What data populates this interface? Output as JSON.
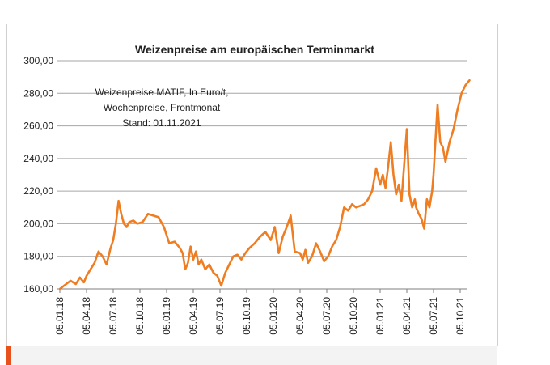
{
  "chart_data": {
    "type": "line",
    "title": "Weizenpreise am europäischen Terminmarkt",
    "annotation_lines": [
      "Weizenpreise MATIF, In Euro/t,",
      "Wochenpreise, Frontmonat",
      "Stand: 01.11.2021"
    ],
    "xlabel": "",
    "ylabel": "",
    "ylim": [
      160,
      300
    ],
    "y_ticks": [
      160,
      180,
      200,
      220,
      240,
      260,
      280,
      300
    ],
    "y_tick_labels": [
      "160,00",
      "180,00",
      "200,00",
      "220,00",
      "240,00",
      "260,00",
      "280,00",
      "300,00"
    ],
    "x_tick_labels": [
      "05.01.18",
      "05.04.18",
      "05.07.18",
      "05.10.18",
      "05.01.19",
      "05.04.19",
      "05.07.19",
      "05.10.19",
      "05.01.20",
      "05.04.20",
      "05.07.20",
      "05.10.20",
      "05.01.21",
      "05.04.21",
      "05.07.21",
      "05.10.21"
    ],
    "grid": true,
    "line_color": "#ef7d22",
    "series": [
      {
        "name": "Weizenpreise MATIF",
        "x": [
          0,
          0.4,
          0.6,
          0.75,
          0.9,
          1.0,
          1.15,
          1.3,
          1.45,
          1.6,
          1.75,
          1.9,
          2.0,
          2.1,
          2.2,
          2.3,
          2.4,
          2.5,
          2.6,
          2.75,
          2.9,
          3.1,
          3.3,
          3.5,
          3.7,
          3.9,
          4.1,
          4.3,
          4.5,
          4.6,
          4.7,
          4.8,
          4.9,
          5.0,
          5.1,
          5.2,
          5.3,
          5.45,
          5.6,
          5.75,
          5.9,
          6.05,
          6.2,
          6.35,
          6.5,
          6.65,
          6.8,
          6.95,
          7.1,
          7.3,
          7.5,
          7.7,
          7.9,
          8.05,
          8.2,
          8.35,
          8.5,
          8.65,
          8.8,
          9.0,
          9.1,
          9.2,
          9.3,
          9.45,
          9.6,
          9.75,
          9.9,
          10.05,
          10.2,
          10.35,
          10.5,
          10.65,
          10.8,
          10.95,
          11.1,
          11.25,
          11.4,
          11.55,
          11.7,
          11.85,
          12.0,
          12.1,
          12.2,
          12.3,
          12.4,
          12.5,
          12.6,
          12.7,
          12.8,
          12.9,
          13.0,
          13.1,
          13.2,
          13.3,
          13.35,
          13.45,
          13.55,
          13.65,
          13.75,
          13.85,
          13.95,
          14.0,
          14.05,
          14.15,
          14.25,
          14.35,
          14.45,
          14.6,
          14.75,
          14.9,
          15.05,
          15.2,
          15.35
        ],
        "values": [
          160,
          165,
          163,
          167,
          164,
          168,
          172,
          176,
          183,
          180,
          175,
          185,
          190,
          200,
          214,
          206,
          200,
          198,
          201,
          202,
          200,
          201,
          206,
          205,
          204,
          198,
          188,
          189,
          185,
          182,
          172,
          176,
          186,
          178,
          183,
          175,
          178,
          172,
          175,
          170,
          168,
          162,
          170,
          175,
          180,
          181,
          178,
          182,
          185,
          188,
          192,
          195,
          190,
          198,
          182,
          192,
          198,
          205,
          183,
          182,
          178,
          184,
          176,
          180,
          188,
          183,
          177,
          180,
          186,
          190,
          198,
          210,
          208,
          212,
          210,
          211,
          212,
          215,
          220,
          234,
          224,
          230,
          222,
          235,
          250,
          230,
          218,
          224,
          214,
          236,
          258,
          218,
          210,
          215,
          210,
          206,
          203,
          197,
          215,
          210,
          220,
          230,
          245,
          273,
          250,
          247,
          238,
          250,
          258,
          270,
          280,
          285,
          288
        ]
      }
    ]
  }
}
